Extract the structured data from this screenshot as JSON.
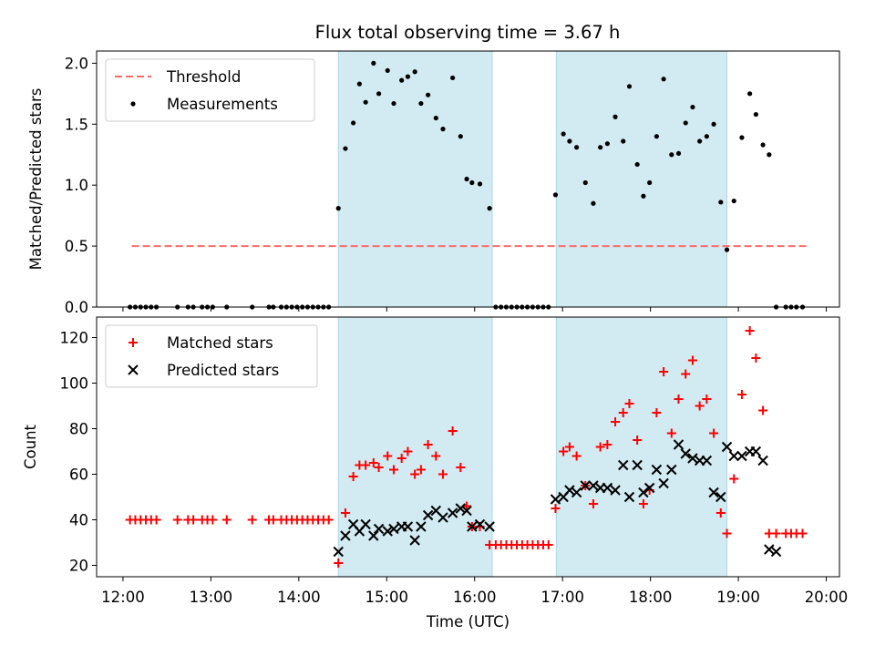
{
  "title": "Flux total observing time = 3.67 h",
  "colors": {
    "shade": "#add8e6",
    "threshold": "#ff6b6b",
    "measurement": "#000000",
    "matched": "#ff0000",
    "predicted": "#000000"
  },
  "chart_data": [
    {
      "type": "scatter",
      "ylabel": "Matched/Predicted stars",
      "ylim": [
        0,
        2.1
      ],
      "yticks": [
        "0.0",
        "0.5",
        "1.0",
        "1.5",
        "2.0"
      ],
      "ytick_values": [
        0,
        0.5,
        1.0,
        1.5,
        2.0
      ],
      "xlim": [
        11.7,
        20.15
      ],
      "shaded_intervals": [
        [
          14.45,
          16.2
        ],
        [
          16.93,
          18.87
        ]
      ],
      "legend": {
        "placement": "upper-left",
        "entries": [
          "Threshold",
          "Measurements"
        ]
      },
      "threshold": {
        "name": "Threshold",
        "y": 0.5,
        "x_range": [
          12.1,
          19.8
        ]
      },
      "series": [
        {
          "name": "Measurements",
          "x": [
            12.08,
            12.14,
            12.2,
            12.26,
            12.32,
            12.38,
            12.62,
            12.74,
            12.8,
            12.9,
            12.96,
            13.02,
            13.18,
            13.47,
            13.66,
            13.71,
            13.8,
            13.86,
            13.92,
            13.98,
            14.04,
            14.1,
            14.16,
            14.22,
            14.28,
            14.34,
            14.45,
            14.53,
            14.62,
            14.69,
            14.76,
            14.85,
            14.91,
            15.01,
            15.08,
            15.17,
            15.24,
            15.32,
            15.39,
            15.47,
            15.56,
            15.64,
            15.75,
            15.84,
            15.91,
            15.97,
            16.06,
            16.17,
            16.24,
            16.3,
            16.36,
            16.42,
            16.48,
            16.54,
            16.6,
            16.66,
            16.72,
            16.78,
            16.84,
            16.92,
            17.01,
            17.08,
            17.16,
            17.26,
            17.35,
            17.43,
            17.51,
            17.6,
            17.69,
            17.76,
            17.85,
            17.92,
            17.99,
            18.07,
            18.15,
            18.24,
            18.32,
            18.4,
            18.48,
            18.56,
            18.64,
            18.72,
            18.8,
            18.87,
            18.95,
            19.04,
            19.13,
            19.2,
            19.28,
            19.35,
            19.43,
            19.54,
            19.6,
            19.66,
            19.73
          ],
          "y": [
            0,
            0,
            0,
            0,
            0,
            0,
            0,
            0,
            0,
            0,
            0,
            0,
            0,
            0,
            0,
            0,
            0,
            0,
            0,
            0,
            0,
            0,
            0,
            0,
            0,
            0,
            0.81,
            1.3,
            1.51,
            1.83,
            1.68,
            2.0,
            1.75,
            1.94,
            1.67,
            1.86,
            1.89,
            1.93,
            1.67,
            1.74,
            1.55,
            1.46,
            1.88,
            1.4,
            1.05,
            1.02,
            1.01,
            0.81,
            0,
            0,
            0,
            0,
            0,
            0,
            0,
            0,
            0,
            0,
            0,
            0.92,
            1.42,
            1.36,
            1.31,
            1.02,
            0.85,
            1.31,
            1.34,
            1.56,
            1.36,
            1.81,
            1.17,
            0.91,
            1.02,
            1.4,
            1.87,
            1.25,
            1.26,
            1.51,
            1.64,
            1.36,
            1.4,
            1.5,
            0.86,
            0.47,
            0.87,
            1.39,
            1.75,
            1.58,
            1.33,
            1.25,
            0,
            0,
            0,
            0,
            0
          ]
        }
      ]
    },
    {
      "type": "scatter",
      "xlabel": "Time (UTC)",
      "ylabel": "Count",
      "ylim": [
        15,
        129
      ],
      "yticks": [
        "20",
        "40",
        "60",
        "80",
        "100",
        "120"
      ],
      "ytick_values": [
        20,
        40,
        60,
        80,
        100,
        120
      ],
      "xlim": [
        11.7,
        20.15
      ],
      "xticks": [
        "12:00",
        "13:00",
        "14:00",
        "15:00",
        "16:00",
        "17:00",
        "18:00",
        "19:00",
        "20:00"
      ],
      "xtick_values": [
        12,
        13,
        14,
        15,
        16,
        17,
        18,
        19,
        20
      ],
      "shaded_intervals": [
        [
          14.45,
          16.2
        ],
        [
          16.93,
          18.87
        ]
      ],
      "legend": {
        "placement": "upper-left",
        "entries": [
          "Matched stars",
          "Predicted stars"
        ]
      },
      "series": [
        {
          "name": "Matched stars",
          "marker": "plus",
          "x": [
            12.08,
            12.14,
            12.2,
            12.26,
            12.32,
            12.38,
            12.62,
            12.74,
            12.8,
            12.9,
            12.96,
            13.02,
            13.18,
            13.47,
            13.66,
            13.71,
            13.8,
            13.86,
            13.92,
            13.98,
            14.04,
            14.1,
            14.16,
            14.22,
            14.28,
            14.34,
            14.45,
            14.53,
            14.62,
            14.69,
            14.76,
            14.85,
            14.91,
            15.01,
            15.08,
            15.17,
            15.24,
            15.32,
            15.39,
            15.47,
            15.56,
            15.64,
            15.75,
            15.84,
            15.91,
            15.97,
            16.06,
            16.17,
            16.24,
            16.3,
            16.36,
            16.42,
            16.48,
            16.54,
            16.6,
            16.66,
            16.72,
            16.78,
            16.84,
            16.92,
            17.01,
            17.08,
            17.16,
            17.26,
            17.35,
            17.43,
            17.51,
            17.6,
            17.69,
            17.76,
            17.85,
            17.92,
            17.99,
            18.07,
            18.15,
            18.24,
            18.32,
            18.4,
            18.48,
            18.56,
            18.64,
            18.72,
            18.8,
            18.87,
            18.95,
            19.04,
            19.13,
            19.2,
            19.28,
            19.35,
            19.43,
            19.54,
            19.6,
            19.66,
            19.73
          ],
          "y": [
            40,
            40,
            40,
            40,
            40,
            40,
            40,
            40,
            40,
            40,
            40,
            40,
            40,
            40,
            40,
            40,
            40,
            40,
            40,
            40,
            40,
            40,
            40,
            40,
            40,
            40,
            21,
            43,
            59,
            64,
            64,
            65,
            63,
            68,
            62,
            67,
            70,
            60,
            62,
            73,
            68,
            60,
            79,
            63,
            46,
            37,
            37,
            29,
            29,
            29,
            29,
            29,
            29,
            29,
            29,
            29,
            29,
            29,
            29,
            45,
            70,
            72,
            68,
            55,
            47,
            72,
            73,
            83,
            87,
            91,
            75,
            47,
            53,
            87,
            105,
            78,
            93,
            104,
            110,
            90,
            93,
            78,
            43,
            34,
            58,
            95,
            123,
            111,
            88,
            34,
            34,
            34,
            34,
            34,
            34
          ]
        },
        {
          "name": "Predicted stars",
          "marker": "x",
          "x": [
            14.45,
            14.53,
            14.62,
            14.69,
            14.76,
            14.85,
            14.91,
            15.01,
            15.08,
            15.17,
            15.24,
            15.32,
            15.39,
            15.47,
            15.56,
            15.64,
            15.75,
            15.84,
            15.91,
            15.97,
            16.06,
            16.17,
            16.92,
            17.01,
            17.08,
            17.16,
            17.26,
            17.35,
            17.43,
            17.51,
            17.6,
            17.69,
            17.76,
            17.85,
            17.92,
            17.99,
            18.07,
            18.15,
            18.24,
            18.32,
            18.4,
            18.48,
            18.56,
            18.64,
            18.72,
            18.8,
            18.87,
            18.95,
            19.04,
            19.13,
            19.2,
            19.28,
            19.35,
            19.43
          ],
          "y": [
            26,
            33,
            38,
            35,
            38,
            33,
            36,
            35,
            36,
            37,
            37,
            31,
            37,
            42,
            44,
            41,
            43,
            45,
            44,
            37,
            38,
            37,
            49,
            50,
            53,
            52,
            55,
            55,
            54,
            54,
            53,
            64,
            50,
            64,
            52,
            54,
            62,
            56,
            62,
            73,
            69,
            67,
            66,
            66,
            52,
            50,
            72,
            68,
            68,
            70,
            70,
            66,
            27,
            26
          ]
        }
      ]
    }
  ]
}
